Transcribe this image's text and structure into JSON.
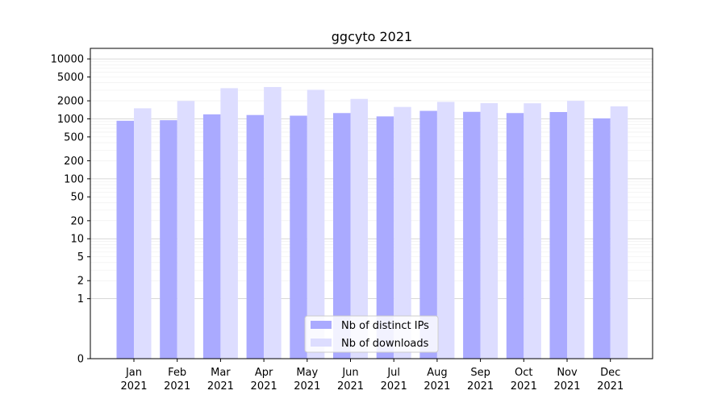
{
  "chart_data": {
    "type": "bar",
    "title": "ggcyto 2021",
    "xlabel": "",
    "ylabel": "",
    "yscale": "symlog",
    "ylim": [
      0,
      15000
    ],
    "grid": "horizontal",
    "legend_position": "bottom-center",
    "categories": [
      [
        "Jan",
        "2021"
      ],
      [
        "Feb",
        "2021"
      ],
      [
        "Mar",
        "2021"
      ],
      [
        "Apr",
        "2021"
      ],
      [
        "May",
        "2021"
      ],
      [
        "Jun",
        "2021"
      ],
      [
        "Jul",
        "2021"
      ],
      [
        "Aug",
        "2021"
      ],
      [
        "Sep",
        "2021"
      ],
      [
        "Oct",
        "2021"
      ],
      [
        "Nov",
        "2021"
      ],
      [
        "Dec",
        "2021"
      ]
    ],
    "yticks": [
      "0",
      "1",
      "2",
      "5",
      "10",
      "20",
      "50",
      "100",
      "200",
      "500",
      "1000",
      "2000",
      "5000",
      "10000"
    ],
    "ytick_values": [
      0,
      1,
      2,
      5,
      10,
      20,
      50,
      100,
      200,
      500,
      1000,
      2000,
      5000,
      10000
    ],
    "series": [
      {
        "name": "Nb of distinct IPs",
        "color": "#aaaaff",
        "values": [
          930,
          950,
          1190,
          1160,
          1130,
          1250,
          1100,
          1360,
          1310,
          1250,
          1300,
          1020
        ]
      },
      {
        "name": "Nb of downloads",
        "color": "#ddddff",
        "values": [
          1500,
          1990,
          3250,
          3400,
          3050,
          2150,
          1580,
          1920,
          1830,
          1820,
          2000,
          1620
        ]
      }
    ]
  }
}
